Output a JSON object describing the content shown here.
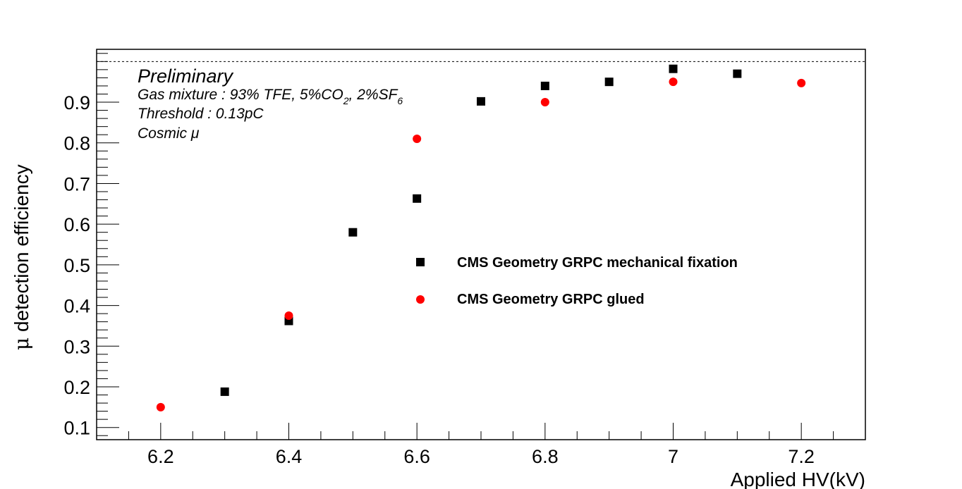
{
  "chart_data": {
    "type": "scatter",
    "xlabel": "Applied HV(kV)",
    "ylabel_prefix": "μ",
    "ylabel": " detection efficiency",
    "xlim": [
      6.1,
      7.3
    ],
    "ylim": [
      0.07,
      1.03
    ],
    "x_ticks": [
      6.2,
      6.4,
      6.6,
      6.8,
      7.0,
      7.2
    ],
    "x_tick_labels": [
      "6.2",
      "6.4",
      "6.6",
      "6.8",
      "7",
      "7.2"
    ],
    "y_ticks": [
      0.1,
      0.2,
      0.3,
      0.4,
      0.5,
      0.6,
      0.7,
      0.8,
      0.9
    ],
    "y_tick_labels": [
      "0.1",
      "0.2",
      "0.3",
      "0.4",
      "0.5",
      "0.6",
      "0.7",
      "0.8",
      "0.9"
    ],
    "reference_line": 1.0,
    "annotations": {
      "preliminary": "Preliminary",
      "gas_prefix": "Gas mixture : 93% TFE, 5%CO",
      "gas_sub1": "2",
      "gas_mid": ", 2%SF",
      "gas_sub2": "6",
      "threshold": "Threshold : 0.13pC",
      "cosmic": "Cosmic μ"
    },
    "series": [
      {
        "name": "CMS Geometry GRPC mechanical fixation",
        "marker": "square",
        "color": "#000000",
        "x": [
          6.3,
          6.4,
          6.5,
          6.6,
          6.7,
          6.8,
          6.9,
          7.0,
          7.1
        ],
        "y": [
          0.188,
          0.362,
          0.58,
          0.663,
          0.902,
          0.94,
          0.95,
          0.982,
          0.97
        ]
      },
      {
        "name": "CMS Geometry GRPC glued",
        "marker": "circle",
        "color": "#ff0000",
        "x": [
          6.2,
          6.4,
          6.6,
          6.8,
          7.0,
          7.2
        ],
        "y": [
          0.15,
          0.375,
          0.81,
          0.9,
          0.95,
          0.947
        ]
      }
    ]
  }
}
